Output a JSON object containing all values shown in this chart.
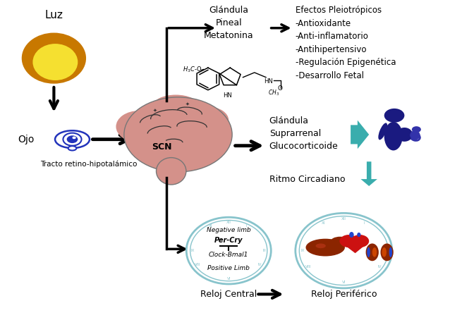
{
  "background_color": "#ffffff",
  "text_color": "#000000",
  "labels": {
    "luz": "Luz",
    "ojo": "Ojo",
    "tracto": "Tracto retino-hipotalámico",
    "scn": "SCN",
    "glandula_pineal": "Glándula\nPineal\nMetatonina",
    "efectos": "Efectos Pleiotrópicos\n-Antioxidante\n-Anti-inflamatorio\n-Antihipertensivo\n-Regulación Epigenética\n-Desarrollo Fetal",
    "glandula_supra": "Glándula\nSuprarrenal\nGlucocorticoide",
    "ritmo": "Ritmo Circadiano",
    "negative": "Negative limb",
    "per_cry": "Per-Cry",
    "clock": "Clock-Bmal1",
    "positive": "Positive Limb",
    "reloj_central": "Reloj Central",
    "reloj_periferico": "Reloj Periférico"
  },
  "sun_color_outer": "#c87800",
  "sun_color_inner": "#f5e030",
  "brain_color": "#d4918a",
  "teal_color": "#3aadad",
  "dark_blue": "#1a1a80",
  "clock_color": "#88c4cc",
  "arrow_lw": 2.5
}
